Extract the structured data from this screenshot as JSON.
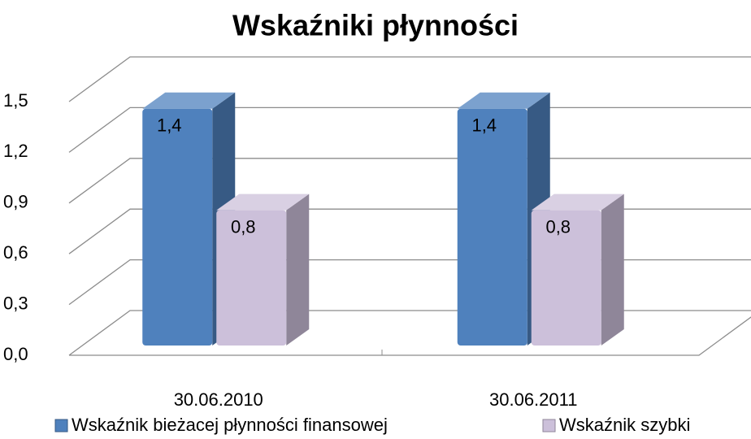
{
  "chart_data": {
    "type": "bar3d",
    "title": "Wskaźniki płynności",
    "categories": [
      "30.06.2010",
      "30.06.2011"
    ],
    "series": [
      {
        "name": "Wskaźnik bieżacej płynności finansowej",
        "color": "#4f81bd",
        "values": [
          1.4,
          1.4
        ],
        "value_labels": [
          "1,4",
          "1,4"
        ]
      },
      {
        "name": "Wskaźnik szybki",
        "color": "#ccc0da",
        "values": [
          0.8,
          0.8
        ],
        "value_labels": [
          "0,8",
          "0,8"
        ]
      }
    ],
    "ylim": [
      0,
      1.5
    ],
    "yticks": [
      {
        "value": 0,
        "label": "0,0"
      },
      {
        "value": 0.3,
        "label": "0,3"
      },
      {
        "value": 0.6,
        "label": "0,6"
      },
      {
        "value": 0.9,
        "label": "0,9"
      },
      {
        "value": 1.2,
        "label": "1,2"
      },
      {
        "value": 1.5,
        "label": "1,5"
      }
    ],
    "grid": true,
    "legend": "bottom"
  }
}
